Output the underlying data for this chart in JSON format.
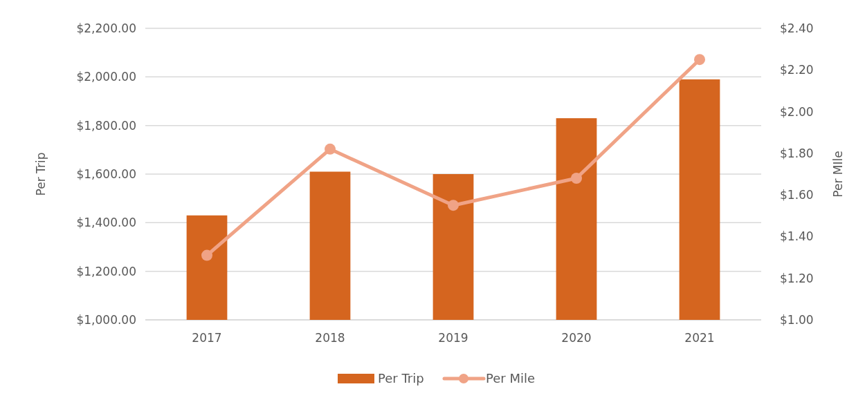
{
  "chart_data": {
    "type": "bar",
    "ylabel": "Per Trip",
    "y2label": "Per MIle",
    "categories": [
      "2017",
      "2018",
      "2019",
      "2020",
      "2021"
    ],
    "series": [
      {
        "name": "Per Trip",
        "color": "#d5651f",
        "values": [
          1430,
          1610,
          1600,
          1830,
          1990
        ]
      },
      {
        "name": "Per Mile",
        "type": "line",
        "axis": "y2",
        "color": "#f0a386",
        "marker": "circle",
        "values": [
          1.31,
          1.82,
          1.55,
          1.68,
          2.25
        ]
      }
    ],
    "ylim": [
      1000,
      2200
    ],
    "yticks": [
      {
        "value": 1000,
        "label": "$1,000.00"
      },
      {
        "value": 1200,
        "label": "$1,200.00"
      },
      {
        "value": 1400,
        "label": "$1,400.00"
      },
      {
        "value": 1600,
        "label": "$1,600.00"
      },
      {
        "value": 1800,
        "label": "$1,800.00"
      },
      {
        "value": 2000,
        "label": "$2,000.00"
      },
      {
        "value": 2200,
        "label": "$2,200.00"
      }
    ],
    "y2lim": [
      1,
      2.4
    ],
    "y2ticks": [
      {
        "value": 1,
        "label": "$1.00"
      },
      {
        "value": 1.2,
        "label": "$1.20"
      },
      {
        "value": 1.4,
        "label": "$1.40"
      },
      {
        "value": 1.6,
        "label": "$1.60"
      },
      {
        "value": 1.8,
        "label": "$1.80"
      },
      {
        "value": 2,
        "label": "$2.00"
      },
      {
        "value": 2.2,
        "label": "$2.20"
      },
      {
        "value": 2.4,
        "label": "$2.40"
      }
    ],
    "grid": "y",
    "legend": "bottom"
  }
}
